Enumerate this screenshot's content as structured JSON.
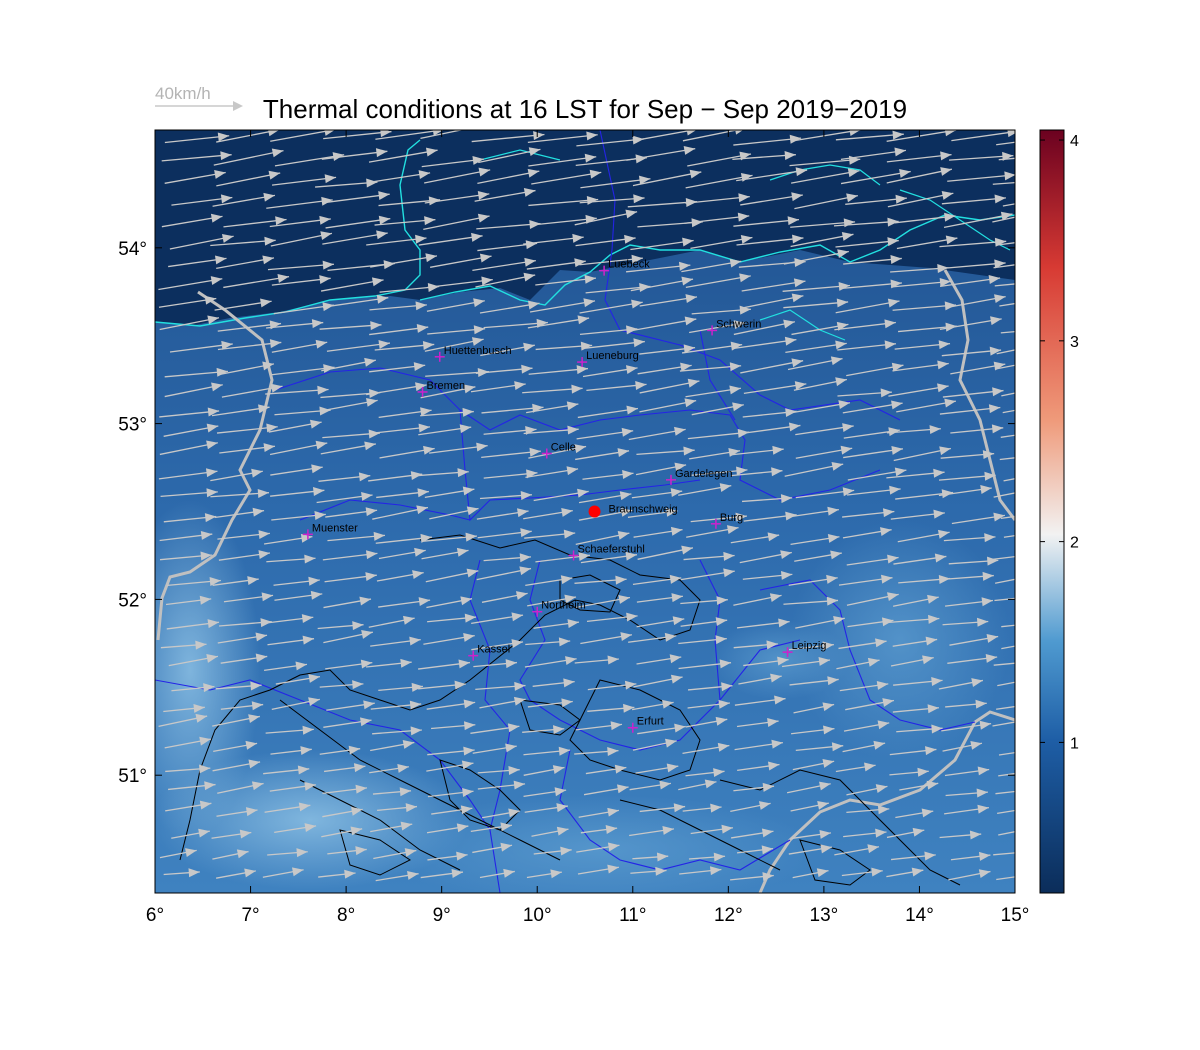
{
  "title": "Thermal conditions at 16 LST for Sep − Sep  2019−2019",
  "wind_reference": {
    "label": "40km/h",
    "speed_kmh": 40
  },
  "map": {
    "lon_range": [
      6,
      15
    ],
    "lat_range": [
      50.33,
      54.67
    ],
    "lon_ticks": [
      "6°",
      "7°",
      "8°",
      "9°",
      "10°",
      "11°",
      "12°",
      "13°",
      "14°",
      "15°"
    ],
    "lat_ticks": [
      {
        "value": 51,
        "label": "51°"
      },
      {
        "value": 52,
        "label": "52°"
      },
      {
        "value": 53,
        "label": "53°"
      },
      {
        "value": 54,
        "label": "54°"
      }
    ]
  },
  "colorbar": {
    "min": 0.25,
    "max": 4.05,
    "ticks": [
      {
        "value": 1,
        "label": "1"
      },
      {
        "value": 2,
        "label": "2"
      },
      {
        "value": 3,
        "label": "3"
      },
      {
        "value": 4,
        "label": "4"
      }
    ],
    "colors": [
      "#0b2d5a",
      "#1e5ea6",
      "#4f9ad0",
      "#f2f2f2",
      "#ef9a7a",
      "#d73a33",
      "#6b0120"
    ]
  },
  "marker": {
    "name": "Braunschweig",
    "lon": 10.6,
    "lat": 52.5,
    "color": "#ff0000"
  },
  "cities": [
    {
      "name": "Luebeck",
      "lon": 10.7,
      "lat": 53.87
    },
    {
      "name": "Schwerin",
      "lon": 11.83,
      "lat": 53.53
    },
    {
      "name": "Huettenbusch",
      "lon": 8.98,
      "lat": 53.38
    },
    {
      "name": "Lueneburg",
      "lon": 10.47,
      "lat": 53.35
    },
    {
      "name": "Bremen",
      "lon": 8.8,
      "lat": 53.18
    },
    {
      "name": "Celle",
      "lon": 10.1,
      "lat": 52.83
    },
    {
      "name": "Gardelegen",
      "lon": 11.4,
      "lat": 52.68
    },
    {
      "name": "Burg",
      "lon": 11.87,
      "lat": 52.43
    },
    {
      "name": "Muenster",
      "lon": 7.6,
      "lat": 52.37
    },
    {
      "name": "Schaeferstuhl",
      "lon": 10.38,
      "lat": 52.25
    },
    {
      "name": "Northeim",
      "lon": 10.0,
      "lat": 51.93
    },
    {
      "name": "Kassel",
      "lon": 9.33,
      "lat": 51.68
    },
    {
      "name": "Leipzig",
      "lon": 12.62,
      "lat": 51.7
    },
    {
      "name": "Erfurt",
      "lon": 11.0,
      "lat": 51.27
    }
  ],
  "wind": {
    "speed_kmh_approx": 40,
    "direction_deg_toward": 85
  },
  "colors": {
    "city_marker": "#cc22cc",
    "wind_arrow": "#c8c8c8",
    "border": "#2424e6",
    "coast": "#22e0e0",
    "contour": "#000000",
    "national_border": "#c0c0c0"
  }
}
